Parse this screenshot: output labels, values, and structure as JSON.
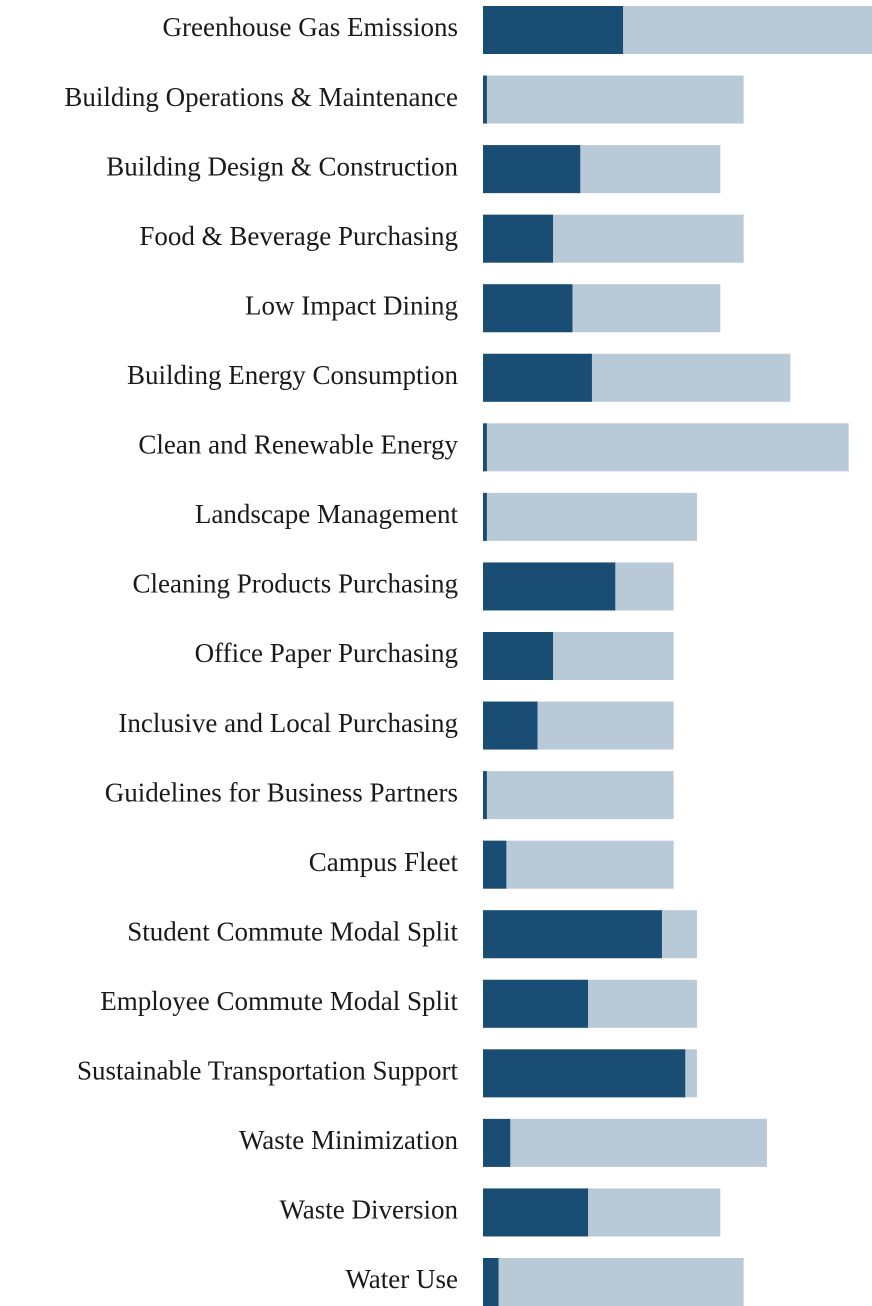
{
  "chart_data": {
    "type": "bar",
    "orientation": "horizontal",
    "categories": [
      "Greenhouse Gas Emissions",
      "Building Operations & Maintenance",
      "Building Design & Construction",
      "Food & Beverage Purchasing",
      "Low Impact Dining",
      "Building Energy Consumption",
      "Clean and Renewable Energy",
      "Landscape Management",
      "Cleaning Products Purchasing",
      "Office Paper Purchasing",
      "Inclusive and Local Purchasing",
      "Guidelines for Business Partners",
      "Campus Fleet",
      "Student Commute Modal Split",
      "Employee Commute Modal Split",
      "Sustainable Transportation Support",
      "Waste Minimization",
      "Waste Diversion",
      "Water Use"
    ],
    "series": [
      {
        "color": "#b8c9d7",
        "values": [
          100,
          67,
          61,
          67,
          61,
          79,
          94,
          55,
          49,
          49,
          49,
          49,
          49,
          55,
          55,
          55,
          73,
          61,
          67
        ]
      },
      {
        "color": "#1a4d73",
        "values": [
          36,
          1,
          25,
          18,
          23,
          28,
          1,
          1,
          34,
          18,
          14,
          1,
          6,
          46,
          27,
          52,
          7,
          27,
          4
        ]
      }
    ],
    "xlim": [
      0,
      100
    ],
    "grid": false
  }
}
